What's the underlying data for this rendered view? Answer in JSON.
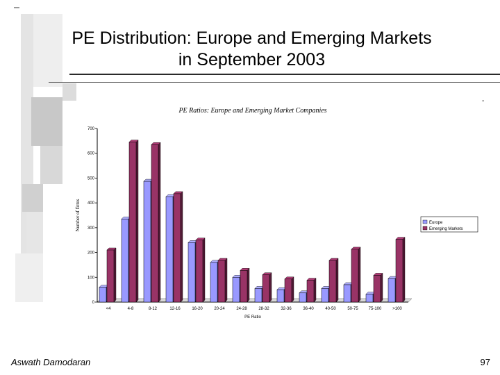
{
  "slide": {
    "title_line1": "PE Distribution: Europe and Emerging Markets",
    "title_line2": "in September 2003",
    "footer_author": "Aswath Damodaran",
    "page_number": "97",
    "corner_mark": "-"
  },
  "chart_data": {
    "type": "bar",
    "title": "PE Ratios: Europe and Emerging Market Companies",
    "xlabel": "PE Ratio",
    "ylabel": "Number of firms",
    "ylim": [
      0,
      700
    ],
    "yticks": [
      0,
      100,
      200,
      300,
      400,
      500,
      600,
      700
    ],
    "categories": [
      "<4",
      "4-8",
      "8-12",
      "12-16",
      "16-20",
      "20-24",
      "24-28",
      "28-32",
      "32-36",
      "36-40",
      "40-50",
      "50-75",
      "75-100",
      ">100"
    ],
    "series": [
      {
        "name": "Europe",
        "color": "#9999ff",
        "values": [
          60,
          335,
          487,
          425,
          240,
          160,
          100,
          55,
          50,
          37,
          55,
          70,
          32,
          95
        ]
      },
      {
        "name": "Emerging Markets",
        "color": "#993366",
        "values": [
          210,
          645,
          635,
          437,
          250,
          168,
          128,
          110,
          93,
          88,
          168,
          213,
          108,
          253
        ]
      }
    ],
    "legend_position": "right"
  }
}
